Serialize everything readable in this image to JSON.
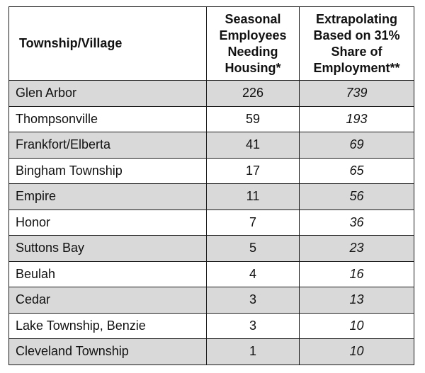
{
  "header": {
    "col1": "Township/Village",
    "col2_lines": [
      "Seasonal",
      "Employees",
      "Needing",
      "Housing*"
    ],
    "col3_lines": [
      "Extrapolating",
      "Based on 31%",
      "Share of",
      "Employment**"
    ]
  },
  "rows": [
    {
      "name": "Glen Arbor",
      "seasonal": "226",
      "extrapolated": "739"
    },
    {
      "name": "Thompsonville",
      "seasonal": "59",
      "extrapolated": "193"
    },
    {
      "name": "Frankfort/Elberta",
      "seasonal": "41",
      "extrapolated": "69"
    },
    {
      "name": "Bingham Township",
      "seasonal": "17",
      "extrapolated": "65"
    },
    {
      "name": "Empire",
      "seasonal": "11",
      "extrapolated": "56"
    },
    {
      "name": "Honor",
      "seasonal": "7",
      "extrapolated": "36"
    },
    {
      "name": "Suttons Bay",
      "seasonal": "5",
      "extrapolated": "23"
    },
    {
      "name": "Beulah",
      "seasonal": "4",
      "extrapolated": "16"
    },
    {
      "name": "Cedar",
      "seasonal": "3",
      "extrapolated": "13"
    },
    {
      "name": "Lake Township, Benzie",
      "seasonal": "3",
      "extrapolated": "10"
    },
    {
      "name": "Cleveland Township",
      "seasonal": "1",
      "extrapolated": "10"
    }
  ],
  "colors": {
    "shaded_row": "#d9d9d9",
    "border": "#1a1a1a"
  }
}
